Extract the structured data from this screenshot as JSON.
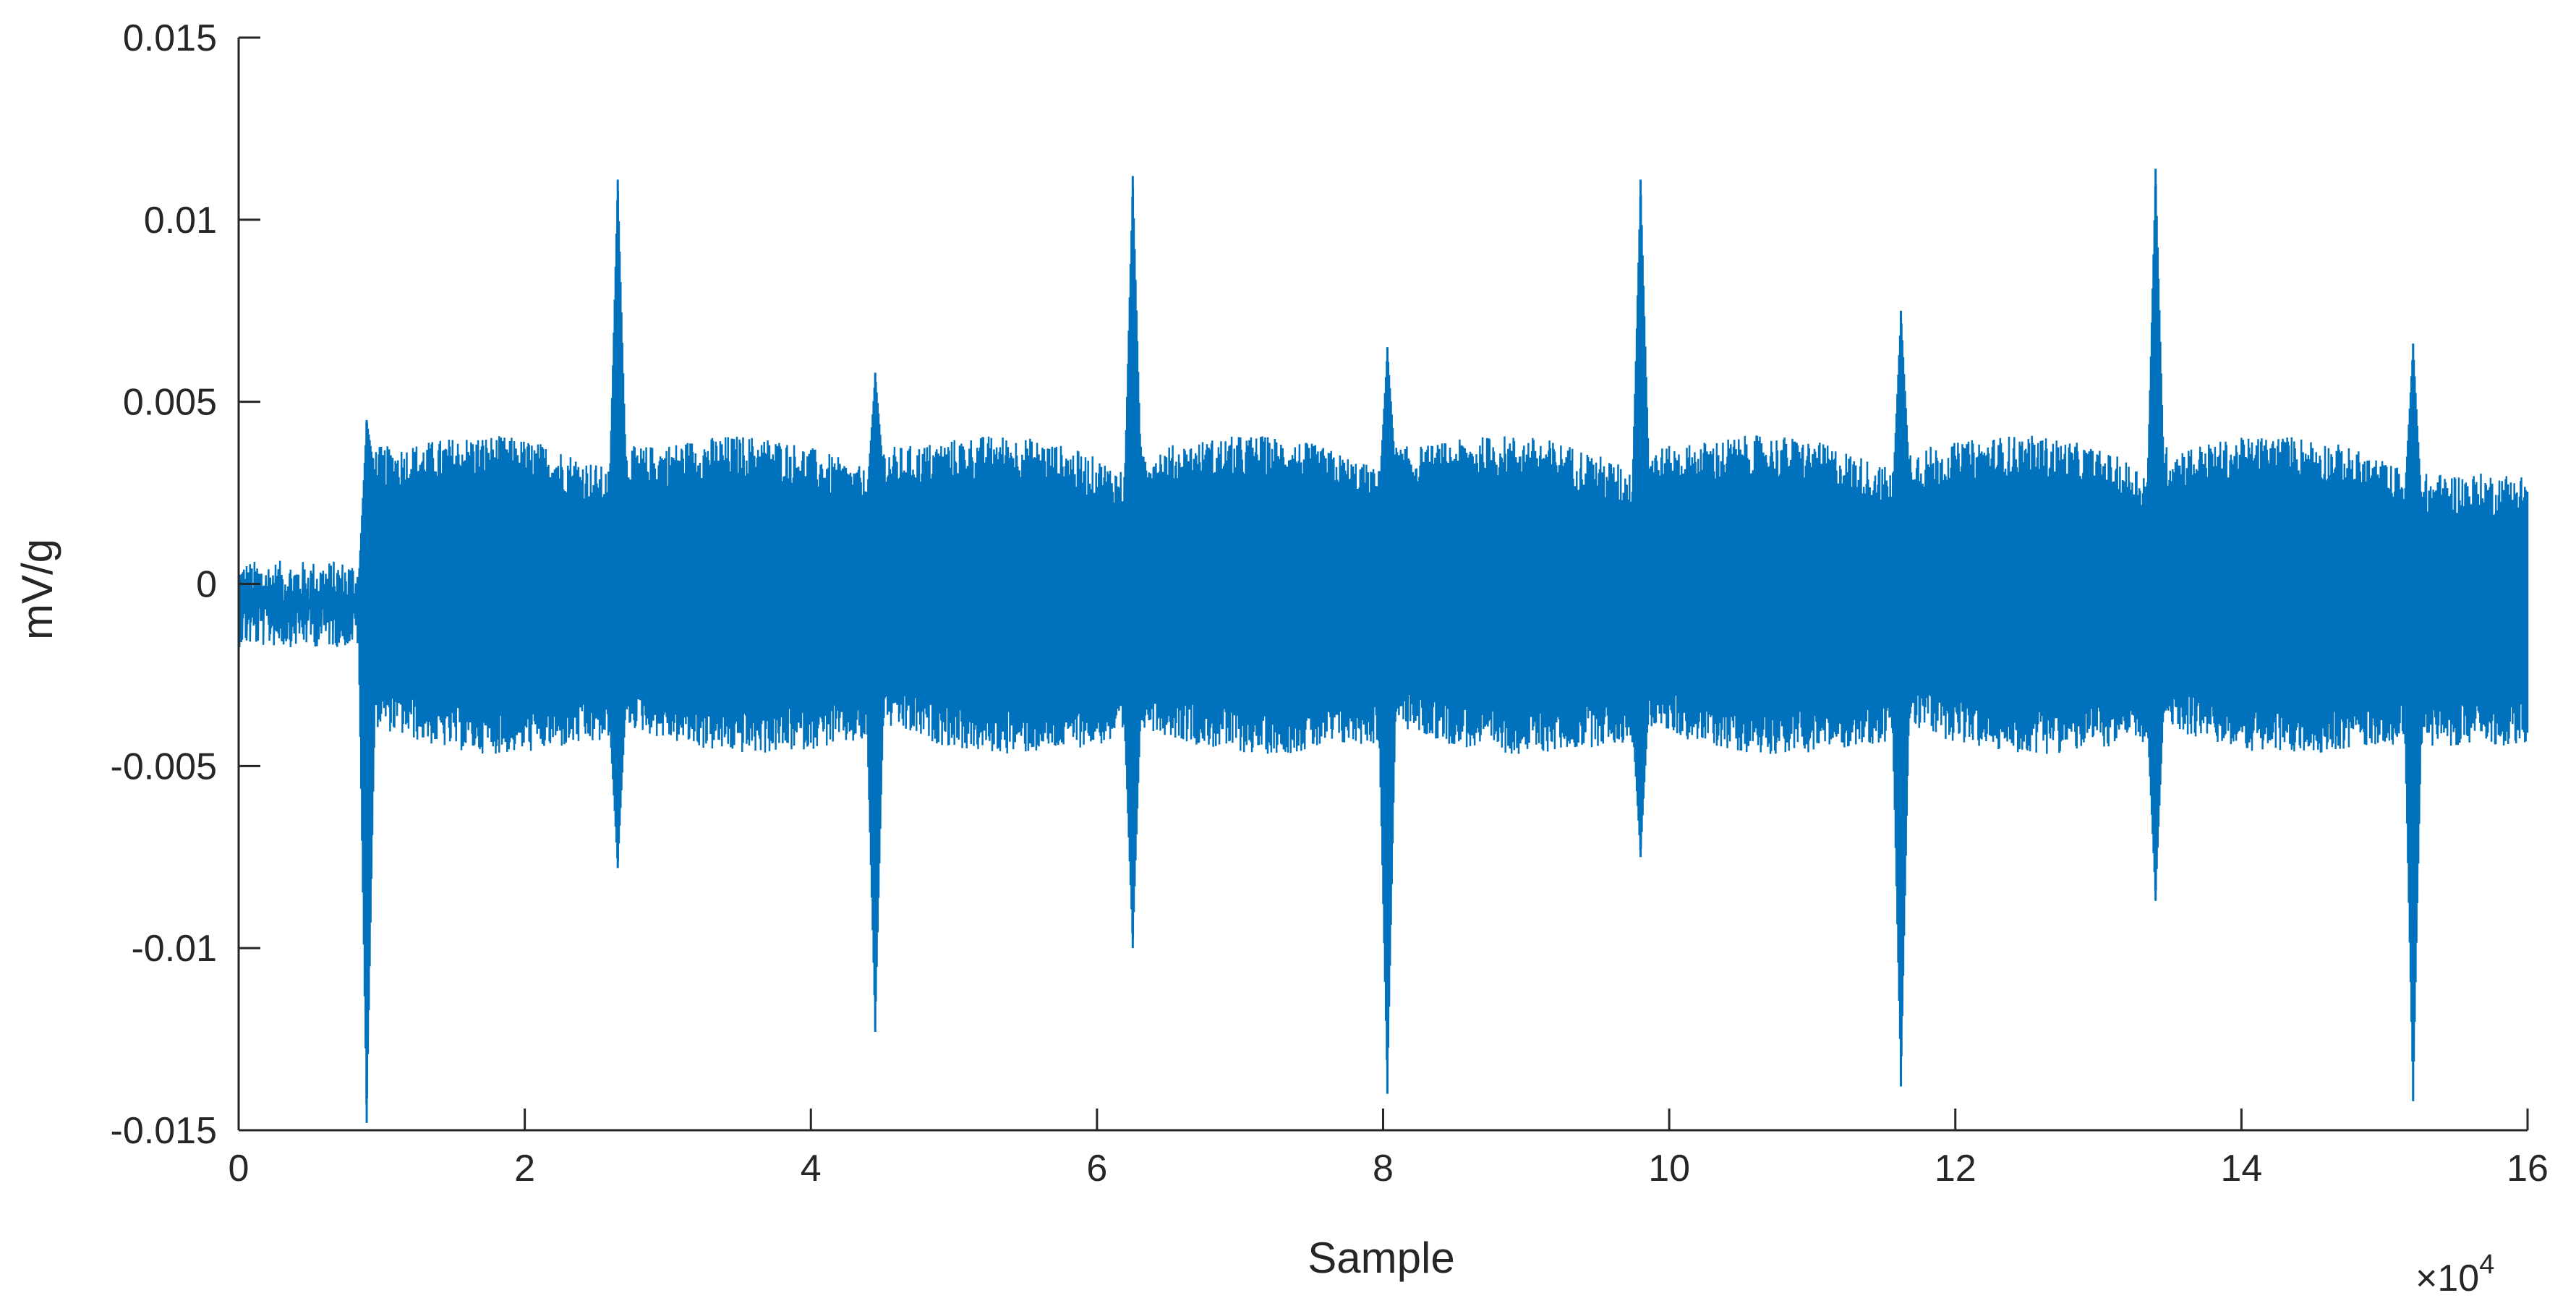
{
  "chart_data": {
    "type": "line",
    "title": "",
    "xlabel": "Sample",
    "ylabel": "mV/g",
    "x_exponent_label": "×10",
    "x_exponent_power": "4",
    "xlim": [
      0,
      160000
    ],
    "ylim": [
      -0.015,
      0.015
    ],
    "x_ticks": [
      0,
      20000,
      40000,
      60000,
      80000,
      100000,
      120000,
      140000,
      160000
    ],
    "x_tick_labels": [
      "0",
      "2",
      "4",
      "6",
      "8",
      "10",
      "12",
      "14",
      "16"
    ],
    "y_ticks": [
      -0.015,
      -0.01,
      -0.005,
      0,
      0.005,
      0.01,
      0.015
    ],
    "y_tick_labels": [
      "-0.015",
      "-0.01",
      "-0.005",
      "0",
      "0.005",
      "0.01",
      "0.015"
    ],
    "grid": false,
    "series": [
      {
        "color": "#0072BD",
        "description_points": {
          "quiet_start": [
            0,
            8900
          ],
          "quiet_level": -0.0005,
          "spikes": [
            {
              "x": 8950,
              "min": -0.0148,
              "max": 0.0045
            },
            {
              "x": 26500,
              "min": -0.0078,
              "max": 0.0111
            },
            {
              "x": 44500,
              "min": -0.0123,
              "max": 0.0058
            },
            {
              "x": 62500,
              "min": -0.01,
              "max": 0.0112
            },
            {
              "x": 80300,
              "min": -0.014,
              "max": 0.0065
            },
            {
              "x": 98000,
              "min": -0.0075,
              "max": 0.0111
            },
            {
              "x": 116200,
              "min": -0.0138,
              "max": 0.0075
            },
            {
              "x": 134000,
              "min": -0.0087,
              "max": 0.0114
            },
            {
              "x": 152000,
              "min": -0.0142,
              "max": 0.0066
            }
          ]
        }
      }
    ],
    "colors": {
      "line": "#0072BD",
      "axis": "#262626",
      "background": "#ffffff"
    }
  }
}
